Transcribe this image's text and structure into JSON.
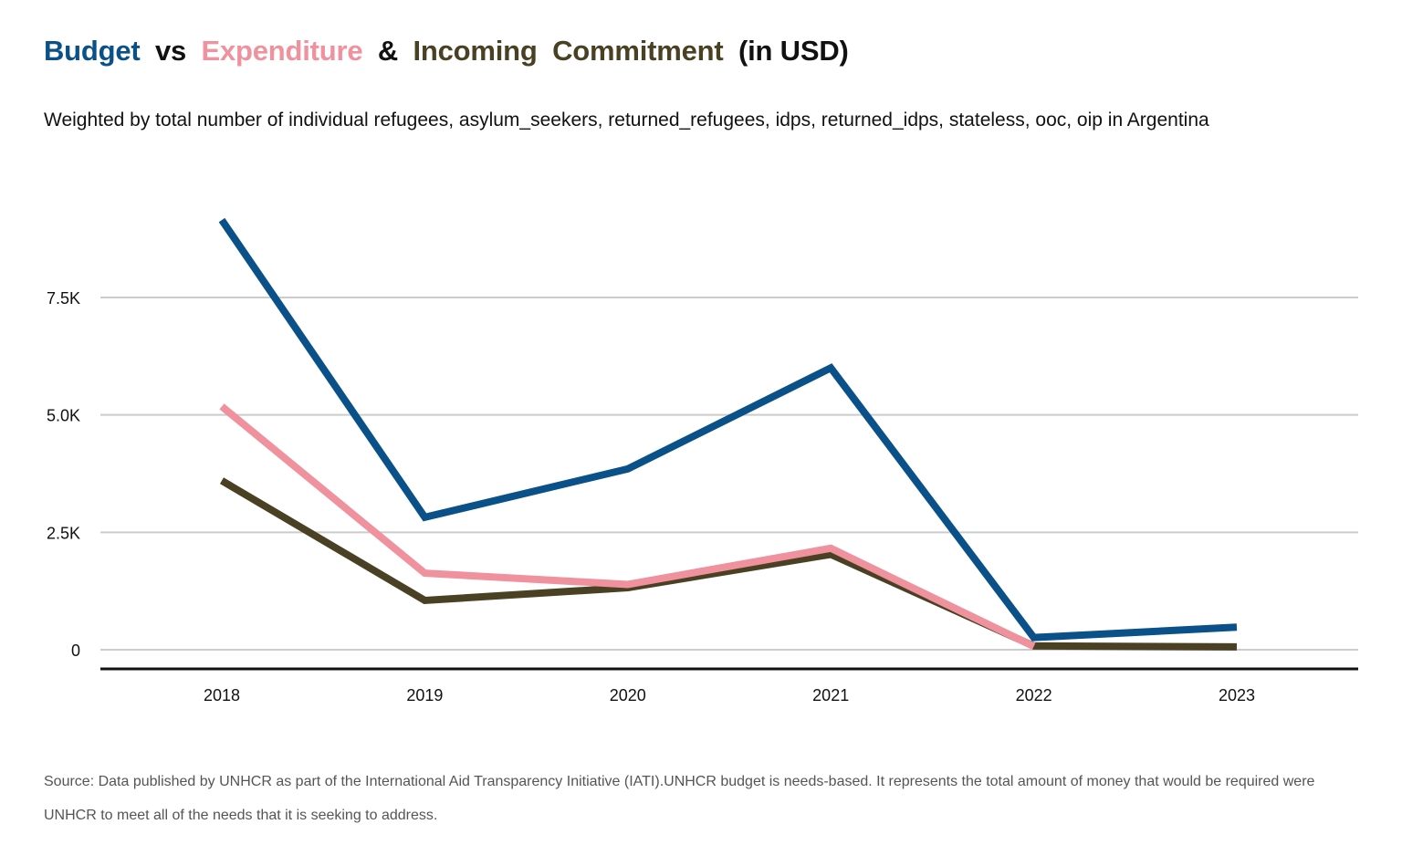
{
  "title": {
    "budget": "Budget",
    "vs": "vs",
    "expenditure": "Expenditure",
    "amp": "&",
    "incoming": "Incoming",
    "commitment": "Commitment",
    "unit": "(in USD)"
  },
  "subtitle": "Weighted by total number of individual refugees, asylum_seekers, returned_refugees, idps, returned_idps, stateless, ooc, oip in Argentina",
  "source": "Source: Data published by UNHCR as part of the International Aid Transparency Initiative (IATI).UNHCR budget is needs-based. It represents the total amount of money that would be required were UNHCR to meet all of the needs that it is seeking to address.",
  "colors": {
    "budget": "#0a5089",
    "expenditure": "#f0919e",
    "commitment": "#4a4023",
    "grid": "#cccccc",
    "axis": "#111111"
  },
  "chart_data": {
    "type": "line",
    "title": "Budget vs Expenditure & Incoming Commitment (in USD)",
    "xlabel": "",
    "ylabel": "",
    "categories": [
      "2018",
      "2019",
      "2020",
      "2021",
      "2022",
      "2023"
    ],
    "y_ticks": [
      0,
      2500,
      5000,
      7500
    ],
    "y_tick_labels": [
      "0",
      "2.5K",
      "5.0K",
      "7.5K"
    ],
    "ylim": [
      -400,
      9500
    ],
    "grid": true,
    "series": [
      {
        "name": "Commitment",
        "color": "#4a4023",
        "values": [
          3600,
          1050,
          1320,
          2030,
          80,
          60
        ]
      },
      {
        "name": "Expenditure",
        "color": "#f0919e",
        "values": [
          5180,
          1630,
          1390,
          2160,
          70,
          null
        ]
      },
      {
        "name": "Budget",
        "color": "#0a5089",
        "values": [
          9150,
          2820,
          3850,
          6000,
          260,
          480
        ]
      }
    ]
  }
}
